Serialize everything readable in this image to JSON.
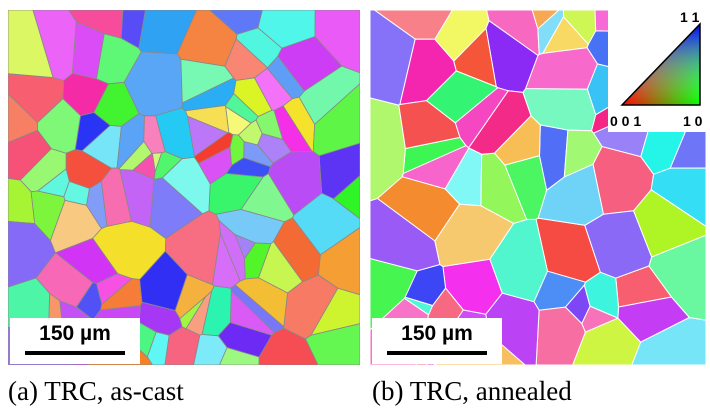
{
  "panels": [
    {
      "scale_bar": "150 µm",
      "caption": "(a) TRC, as-cast"
    },
    {
      "scale_bar": "150 µm",
      "caption": "(b) TRC, annealed"
    }
  ],
  "ipf_key": {
    "top": "1 1",
    "left": "0 0 1",
    "right": "1 0"
  }
}
